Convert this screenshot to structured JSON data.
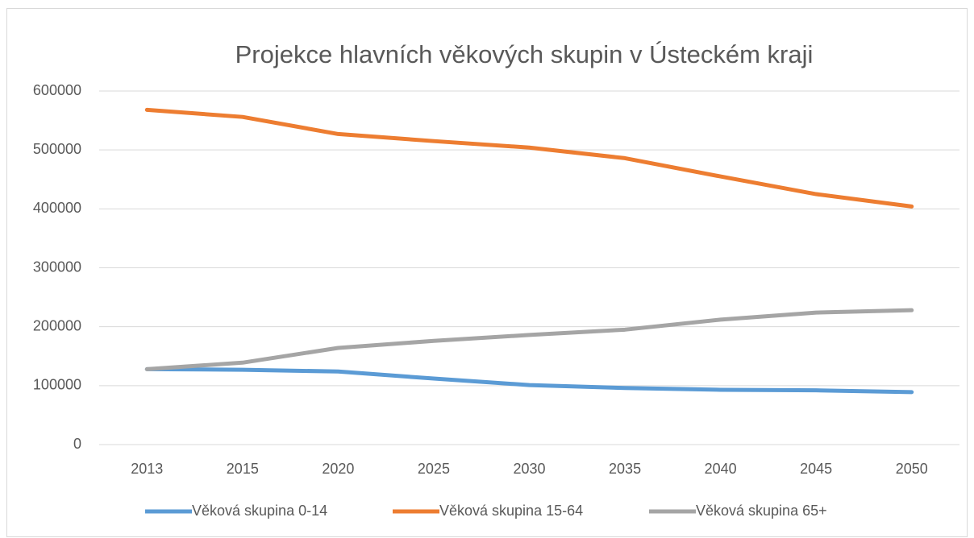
{
  "chart_data": {
    "type": "line",
    "title": "Projekce hlavních věkových skupin v Ústeckém kraji",
    "categories": [
      "2013",
      "2015",
      "2020",
      "2025",
      "2030",
      "2035",
      "2040",
      "2045",
      "2050"
    ],
    "series": [
      {
        "name": "Věková skupina 0-14",
        "color": "#5b9bd5",
        "values": [
          128000,
          127000,
          124000,
          112000,
          101000,
          96000,
          93000,
          92000,
          89000
        ]
      },
      {
        "name": "Věková skupina 15-64",
        "color": "#ed7d31",
        "values": [
          568000,
          556000,
          527000,
          515000,
          504000,
          486000,
          455000,
          425000,
          404000
        ]
      },
      {
        "name": "Věková skupina 65+",
        "color": "#a5a5a5",
        "values": [
          128000,
          139000,
          164000,
          176000,
          186000,
          195000,
          212000,
          224000,
          228000
        ]
      }
    ],
    "ylim": [
      0,
      600000
    ],
    "yticks": [
      0,
      100000,
      200000,
      300000,
      400000,
      500000,
      600000
    ],
    "grid": true,
    "legend": "bottom"
  }
}
